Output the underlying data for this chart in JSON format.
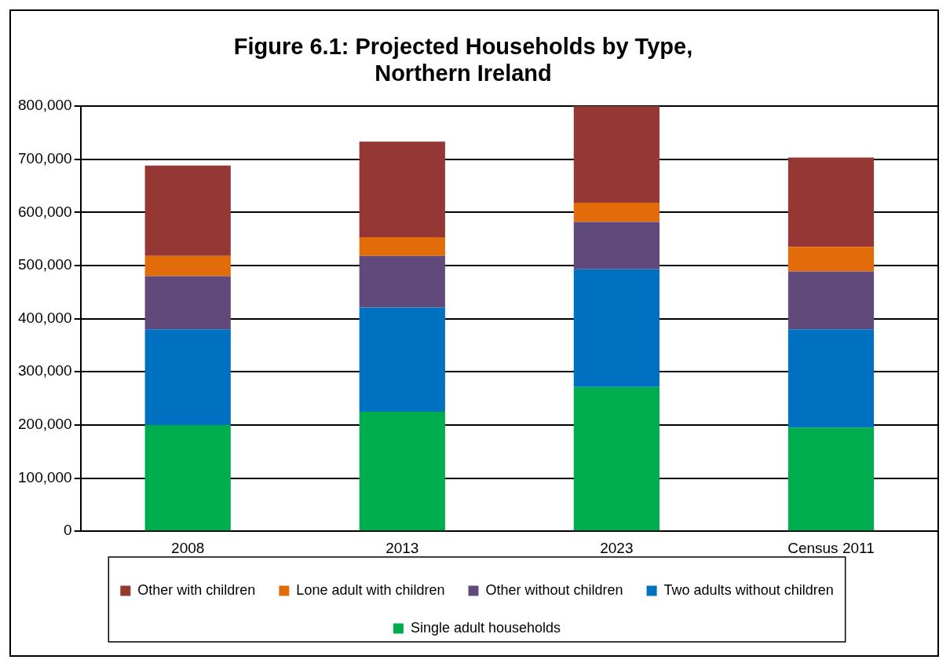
{
  "chart_data": {
    "type": "bar",
    "title": "Figure 6.1: Projected Households by Type, Northern Ireland",
    "categories": [
      "2008",
      "2013",
      "2023",
      "Census 2011"
    ],
    "stacked": true,
    "legend": "bottom",
    "grid": "y",
    "ylim": [
      0,
      800000
    ],
    "yticks": [
      0,
      {
        "value": 100000,
        "label": "100,000"
      },
      {
        "value": 200000,
        "label": "200,000"
      },
      {
        "value": 300000,
        "label": "300,000"
      },
      {
        "value": 400000,
        "label": "400,000"
      },
      {
        "value": 500000,
        "label": "500,000"
      },
      {
        "value": 600000,
        "label": "600,000"
      },
      {
        "value": 700000,
        "label": "700,000"
      },
      {
        "value": 800000,
        "label": "800,000"
      }
    ],
    "series": [
      {
        "name": "Single adult households",
        "color": "#00ad4e",
        "values": [
          200000,
          225000,
          271000,
          195000
        ]
      },
      {
        "name": "Two adults without children",
        "color": "#0070c0",
        "values": [
          180000,
          196000,
          222000,
          185000
        ]
      },
      {
        "name": "Other without children",
        "color": "#604a7b",
        "values": [
          100000,
          97000,
          89000,
          109000
        ]
      },
      {
        "name": "Lone adult with children",
        "color": "#e36c0a",
        "values": [
          38000,
          35000,
          36000,
          46000
        ]
      },
      {
        "name": "Other with children",
        "color": "#953735",
        "values": [
          170000,
          180000,
          182000,
          168000
        ]
      }
    ]
  }
}
